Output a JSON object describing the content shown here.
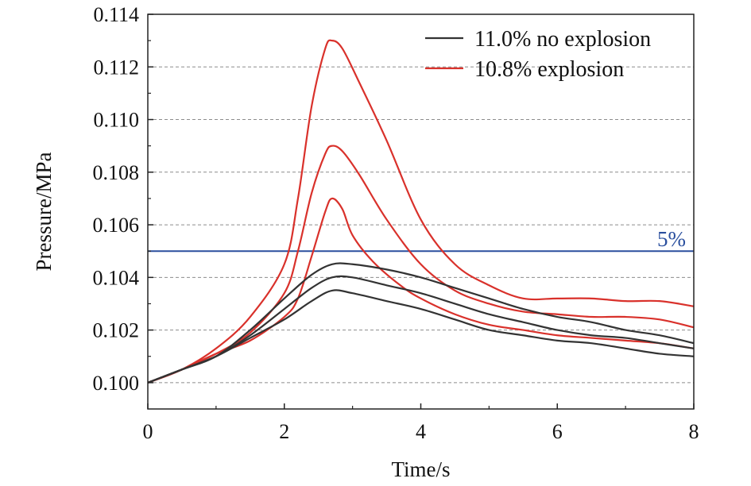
{
  "chart_data": {
    "type": "line",
    "xlabel": "Time/s",
    "ylabel": "Pressure/MPa",
    "xlim": [
      0,
      8
    ],
    "ylim": [
      0.099,
      0.114
    ],
    "xticks": [
      0,
      2,
      4,
      6,
      8
    ],
    "xtick_labels": [
      "0",
      "2",
      "4",
      "6",
      "8"
    ],
    "yticks": [
      0.1,
      0.102,
      0.104,
      0.106,
      0.108,
      0.11,
      0.112,
      0.114
    ],
    "ytick_labels": [
      "0.100",
      "0.102",
      "0.104",
      "0.106",
      "0.108",
      "0.110",
      "0.112",
      "0.114"
    ],
    "grid": "horizontal dashed",
    "legend_position": "top-right",
    "legend": [
      {
        "label": "11.0% no explosion",
        "color": "#333333"
      },
      {
        "label": "10.8% explosion",
        "color": "#d9312b"
      }
    ],
    "reference_line": {
      "y": 0.105,
      "label": "5%",
      "color": "#2a4f9e"
    },
    "series": [
      {
        "group": "explosion",
        "color": "#d9312b",
        "points": [
          [
            0,
            0.1
          ],
          [
            0.5,
            0.1005
          ],
          [
            1,
            0.1013
          ],
          [
            1.5,
            0.1025
          ],
          [
            2,
            0.1045
          ],
          [
            2.2,
            0.107
          ],
          [
            2.4,
            0.1105
          ],
          [
            2.6,
            0.1127
          ],
          [
            2.7,
            0.113
          ],
          [
            2.85,
            0.1127
          ],
          [
            3.1,
            0.1114
          ],
          [
            3.5,
            0.1092
          ],
          [
            4,
            0.1062
          ],
          [
            4.5,
            0.1045
          ],
          [
            5,
            0.1037
          ],
          [
            5.5,
            0.1032
          ],
          [
            6,
            0.1032
          ],
          [
            6.5,
            0.1032
          ],
          [
            7,
            0.1031
          ],
          [
            7.5,
            0.1031
          ],
          [
            8,
            0.1029
          ]
        ]
      },
      {
        "group": "explosion",
        "color": "#d9312b",
        "points": [
          [
            0,
            0.1
          ],
          [
            0.5,
            0.1005
          ],
          [
            1,
            0.1011
          ],
          [
            1.5,
            0.1019
          ],
          [
            2,
            0.1034
          ],
          [
            2.2,
            0.105
          ],
          [
            2.4,
            0.1072
          ],
          [
            2.6,
            0.1087
          ],
          [
            2.7,
            0.109
          ],
          [
            2.85,
            0.1088
          ],
          [
            3.1,
            0.1079
          ],
          [
            3.5,
            0.1062
          ],
          [
            4,
            0.1045
          ],
          [
            4.5,
            0.1035
          ],
          [
            5,
            0.103
          ],
          [
            5.5,
            0.1027
          ],
          [
            6,
            0.1026
          ],
          [
            6.5,
            0.1025
          ],
          [
            7,
            0.1025
          ],
          [
            7.5,
            0.1024
          ],
          [
            8,
            0.1021
          ]
        ]
      },
      {
        "group": "explosion",
        "color": "#d9312b",
        "points": [
          [
            0,
            0.1
          ],
          [
            0.5,
            0.1005
          ],
          [
            1,
            0.1011
          ],
          [
            1.5,
            0.1016
          ],
          [
            2,
            0.1025
          ],
          [
            2.2,
            0.1032
          ],
          [
            2.4,
            0.1048
          ],
          [
            2.6,
            0.1065
          ],
          [
            2.7,
            0.107
          ],
          [
            2.85,
            0.1066
          ],
          [
            3,
            0.1056
          ],
          [
            3.3,
            0.1046
          ],
          [
            3.7,
            0.1037
          ],
          [
            4,
            0.1032
          ],
          [
            4.5,
            0.1026
          ],
          [
            5,
            0.1022
          ],
          [
            5.5,
            0.102
          ],
          [
            6,
            0.1018
          ],
          [
            6.5,
            0.1017
          ],
          [
            7,
            0.1016
          ],
          [
            7.5,
            0.1015
          ],
          [
            8,
            0.1013
          ]
        ]
      },
      {
        "group": "no explosion",
        "color": "#333333",
        "points": [
          [
            0,
            0.1
          ],
          [
            0.5,
            0.1005
          ],
          [
            1,
            0.101
          ],
          [
            1.5,
            0.102
          ],
          [
            2,
            0.1032
          ],
          [
            2.4,
            0.1041
          ],
          [
            2.7,
            0.1045
          ],
          [
            3,
            0.1045
          ],
          [
            3.5,
            0.1043
          ],
          [
            4,
            0.104
          ],
          [
            4.5,
            0.1036
          ],
          [
            5,
            0.1032
          ],
          [
            5.5,
            0.1028
          ],
          [
            6,
            0.1025
          ],
          [
            6.5,
            0.1023
          ],
          [
            7,
            0.102
          ],
          [
            7.5,
            0.1018
          ],
          [
            8,
            0.1015
          ]
        ]
      },
      {
        "group": "no explosion",
        "color": "#333333",
        "points": [
          [
            0,
            0.1
          ],
          [
            0.5,
            0.1005
          ],
          [
            1,
            0.101
          ],
          [
            1.5,
            0.1018
          ],
          [
            2,
            0.1028
          ],
          [
            2.4,
            0.1036
          ],
          [
            2.7,
            0.104
          ],
          [
            3,
            0.104
          ],
          [
            3.5,
            0.1037
          ],
          [
            4,
            0.1034
          ],
          [
            4.5,
            0.103
          ],
          [
            5,
            0.1026
          ],
          [
            5.5,
            0.1023
          ],
          [
            6,
            0.102
          ],
          [
            6.5,
            0.1018
          ],
          [
            7,
            0.1017
          ],
          [
            7.5,
            0.1015
          ],
          [
            8,
            0.1013
          ]
        ]
      },
      {
        "group": "no explosion",
        "color": "#333333",
        "points": [
          [
            0,
            0.1
          ],
          [
            0.5,
            0.1005
          ],
          [
            1,
            0.101
          ],
          [
            1.5,
            0.1017
          ],
          [
            2,
            0.1024
          ],
          [
            2.4,
            0.1031
          ],
          [
            2.7,
            0.1035
          ],
          [
            3,
            0.1034
          ],
          [
            3.5,
            0.1031
          ],
          [
            4,
            0.1028
          ],
          [
            4.5,
            0.1024
          ],
          [
            5,
            0.102
          ],
          [
            5.5,
            0.1018
          ],
          [
            6,
            0.1016
          ],
          [
            6.5,
            0.1015
          ],
          [
            7,
            0.1013
          ],
          [
            7.5,
            0.1011
          ],
          [
            8,
            0.101
          ]
        ]
      }
    ]
  }
}
